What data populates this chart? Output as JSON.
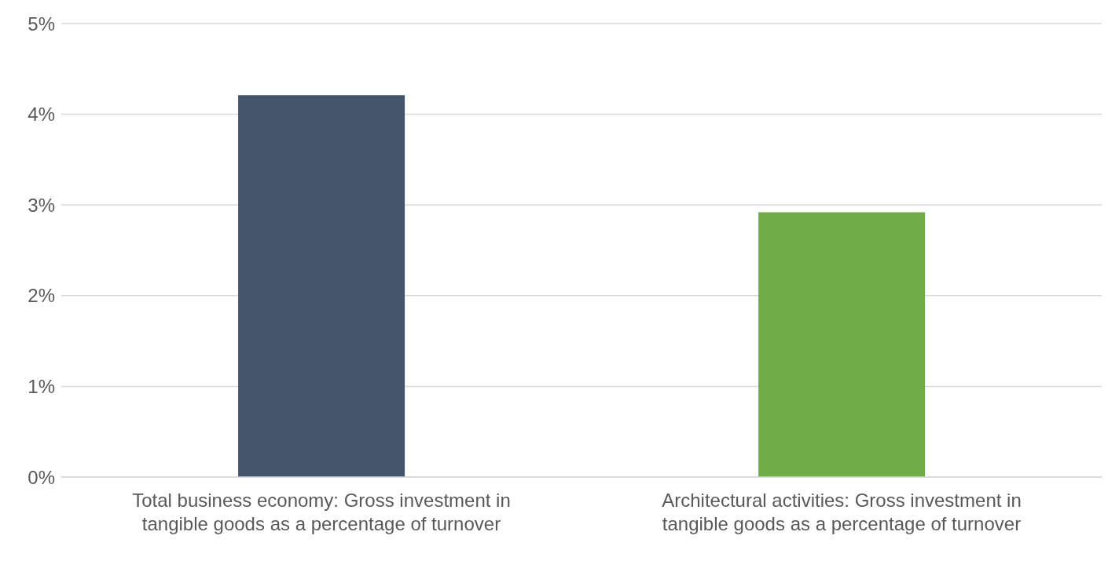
{
  "chart_data": {
    "type": "bar",
    "categories": [
      "Total business economy: Gross investment in tangible goods as a percentage of turnover",
      "Architectural activities: Gross investment in tangible goods as a percentage of turnover"
    ],
    "values": [
      4.21,
      2.92
    ],
    "colors": [
      "#44546a",
      "#70ad47"
    ],
    "ylim": [
      0,
      5
    ],
    "yticks": [
      {
        "value": 0,
        "label": "0%"
      },
      {
        "value": 1,
        "label": "1%"
      },
      {
        "value": 2,
        "label": "2%"
      },
      {
        "value": 3,
        "label": "3%"
      },
      {
        "value": 4,
        "label": "4%"
      },
      {
        "value": 5,
        "label": "5%"
      }
    ],
    "grid": "y"
  }
}
